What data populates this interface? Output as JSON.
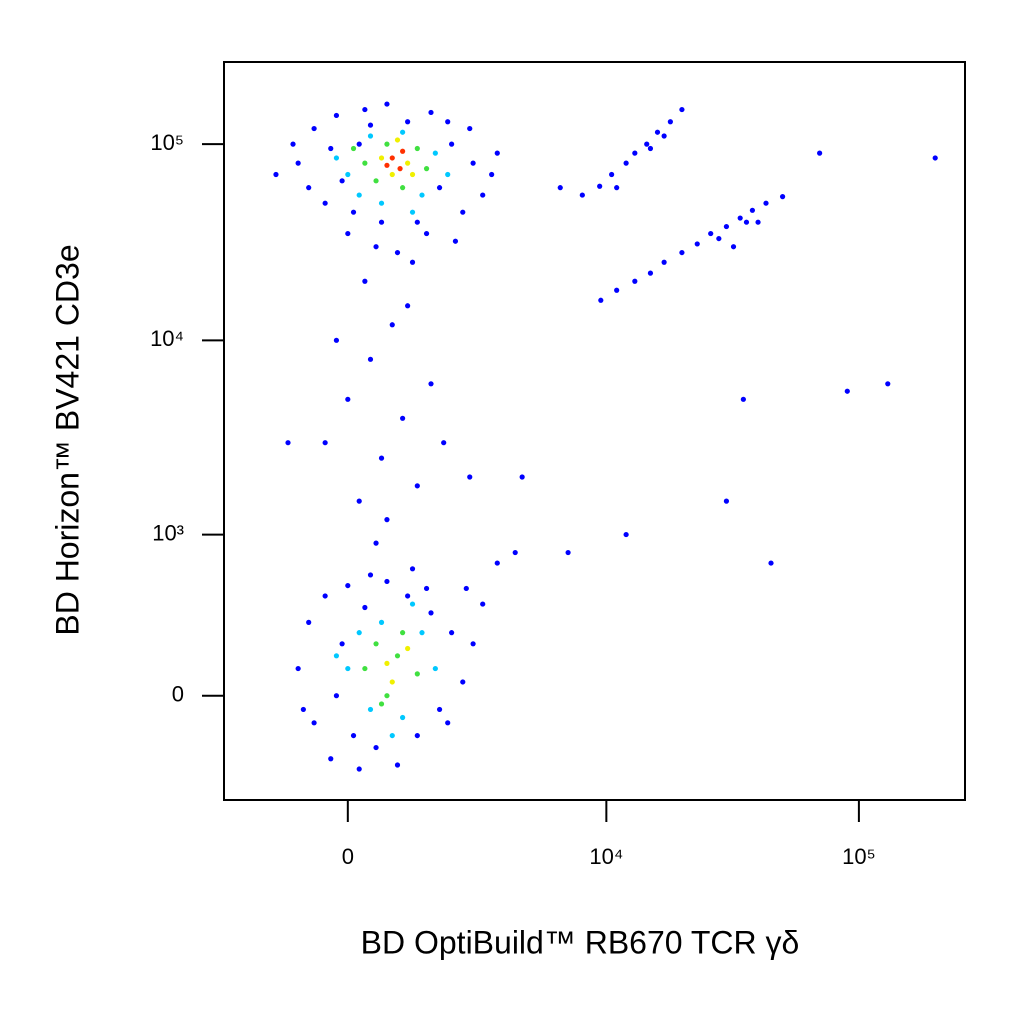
{
  "chart_data": {
    "type": "scatter",
    "x_label": "BD OptiBuild™ RB670 TCR γδ",
    "y_label": "BD Horizon™ BV421 CD3e",
    "xscale": {
      "type": "arcsinh",
      "cofactor": 1929
    },
    "yscale": {
      "type": "arcsinh",
      "cofactor": 309
    },
    "xlim": [
      -2656,
      262144
    ],
    "ylim": [
      -480,
      262144
    ],
    "xticks": [
      0,
      {
        "value": 10000,
        "label": "10⁴"
      },
      {
        "value": 100000,
        "label": "10⁵"
      }
    ],
    "yticks": [
      0,
      {
        "value": 1000,
        "label": "10³"
      },
      {
        "value": 10000,
        "label": "10⁴"
      },
      {
        "value": 100000,
        "label": "10⁵"
      }
    ],
    "series": [
      {
        "color": "#0000ff",
        "x": [
          -900,
          -600,
          -400,
          -200,
          0,
          200,
          300,
          500,
          700,
          900,
          1100,
          1300,
          1600,
          1800,
          2100,
          2400,
          2700,
          3000,
          3300,
          -700,
          -300,
          100,
          400,
          1500,
          2000,
          2600,
          -1000,
          600,
          1200,
          2200,
          -100,
          3500,
          -900,
          -700,
          -600,
          -400,
          -300,
          -100,
          0,
          200,
          300,
          500,
          700,
          900,
          1100,
          1300,
          1600,
          1800,
          2100,
          2400,
          2700,
          3000,
          -800,
          -200,
          100,
          1500,
          2000,
          400,
          1200,
          2500,
          3500,
          4200,
          -400,
          0,
          200,
          400,
          600,
          800,
          1000,
          1300,
          1600,
          -200,
          300,
          1100,
          700,
          1900,
          2600,
          500,
          9400,
          10500,
          12000,
          13000,
          14500,
          16000,
          18000,
          20000,
          11000,
          15000,
          17000,
          6500,
          8000,
          9500,
          11000,
          13000,
          15000,
          17000,
          20000,
          23000,
          26000,
          30000,
          34000,
          38000,
          43000,
          50000,
          28000,
          36000,
          32000,
          40000,
          35000,
          90000,
          130000,
          4500,
          30000,
          45000,
          7000,
          12000,
          200000,
          70000,
          -1100,
          -1350
        ],
        "values": [
          80000,
          120000,
          50000,
          140000,
          35000,
          100000,
          150000,
          30000,
          160000,
          28000,
          130000,
          40000,
          145000,
          60000,
          100000,
          45000,
          80000,
          55000,
          70000,
          60000,
          95000,
          45000,
          125000,
          35000,
          130000,
          120000,
          100000,
          40000,
          25000,
          32000,
          65000,
          90000,
          100,
          300,
          -100,
          450,
          -250,
          200,
          520,
          -300,
          380,
          -200,
          550,
          -280,
          450,
          -150,
          350,
          -50,
          250,
          50,
          200,
          400,
          -50,
          0,
          -150,
          500,
          -100,
          600,
          650,
          500,
          700,
          800,
          3000,
          5000,
          1500,
          8000,
          2500,
          12000,
          4000,
          1800,
          6000,
          10000,
          20000,
          15000,
          1200,
          3000,
          2000,
          900,
          61000,
          70000,
          80000,
          90000,
          100000,
          115000,
          130000,
          150000,
          60000,
          95000,
          110000,
          60000,
          55000,
          16000,
          18000,
          20000,
          22000,
          25000,
          28000,
          31000,
          35000,
          38000,
          42000,
          46000,
          50000,
          54000,
          33000,
          40000,
          30000,
          40000,
          5000,
          5500,
          6000,
          2000,
          1500,
          700,
          800,
          1000,
          85000,
          90000,
          3000,
          70000
        ]
      },
      {
        "color": "#00c8ff",
        "x": [
          0,
          200,
          400,
          600,
          1000,
          1400,
          1700,
          2000,
          -200,
          1200,
          0,
          200,
          400,
          600,
          1000,
          1400,
          1700,
          -200,
          1200,
          800
        ],
        "values": [
          70000,
          55000,
          110000,
          50000,
          115000,
          55000,
          90000,
          70000,
          85000,
          45000,
          100,
          250,
          -50,
          300,
          -80,
          250,
          100,
          150,
          400,
          -150
        ]
      },
      {
        "color": "#40e040",
        "x": [
          300,
          500,
          700,
          1000,
          1300,
          1500,
          100,
          300,
          500,
          700,
          1000,
          1300,
          900,
          600
        ],
        "values": [
          80000,
          65000,
          100000,
          60000,
          95000,
          75000,
          95000,
          100,
          200,
          0,
          250,
          80,
          150,
          -30
        ]
      },
      {
        "color": "#f0f000",
        "x": [
          600,
          800,
          1100,
          900,
          1200,
          700,
          1100,
          800
        ],
        "values": [
          85000,
          70000,
          80000,
          105000,
          70000,
          120,
          180,
          50
        ]
      },
      {
        "color": "#ff3000",
        "x": [
          800,
          950,
          1000,
          700
        ],
        "values": [
          85000,
          75000,
          92000,
          78000
        ]
      }
    ]
  }
}
